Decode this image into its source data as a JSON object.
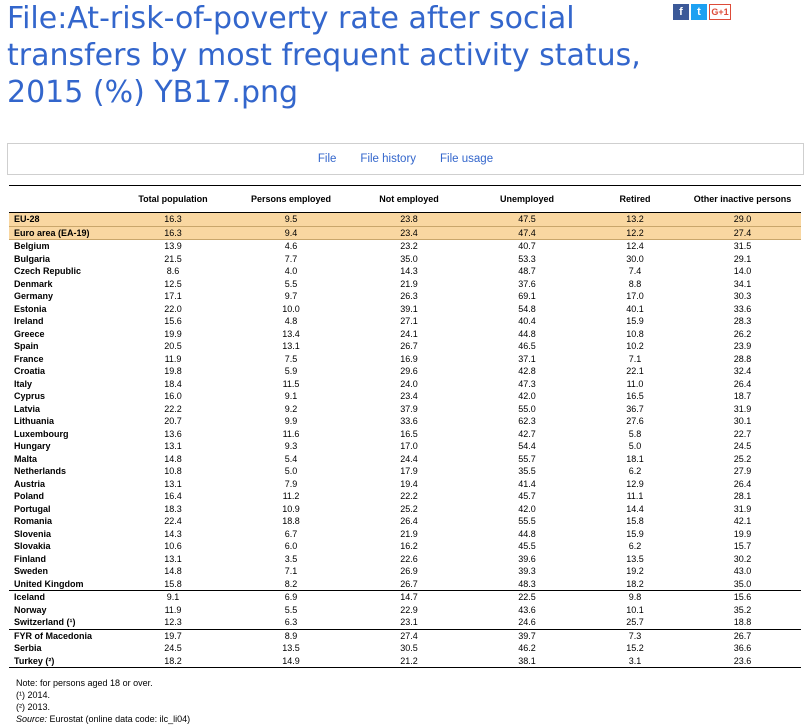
{
  "page": {
    "title": "File:At-risk-of-poverty rate after social transfers by most frequent activity status, 2015 (%) YB17.png"
  },
  "social": {
    "facebook": "f",
    "twitter": "t",
    "googleplus": "G+1"
  },
  "tabs": [
    {
      "label": "File"
    },
    {
      "label": "File history"
    },
    {
      "label": "File usage"
    }
  ],
  "table": {
    "headers": [
      "",
      "Total population",
      "Persons employed",
      "Not employed",
      "Unemployed",
      "Retired",
      "Other inactive persons"
    ],
    "rows": [
      {
        "name": "EU-28",
        "v": [
          "16.3",
          "9.5",
          "23.8",
          "47.5",
          "13.2",
          "29.0"
        ],
        "agg": true
      },
      {
        "name": "Euro area (EA-19)",
        "v": [
          "16.3",
          "9.4",
          "23.4",
          "47.4",
          "12.2",
          "27.4"
        ],
        "agg": true
      },
      {
        "name": "Belgium",
        "v": [
          "13.9",
          "4.6",
          "23.2",
          "40.7",
          "12.4",
          "31.5"
        ]
      },
      {
        "name": "Bulgaria",
        "v": [
          "21.5",
          "7.7",
          "35.0",
          "53.3",
          "30.0",
          "29.1"
        ]
      },
      {
        "name": "Czech Republic",
        "v": [
          "8.6",
          "4.0",
          "14.3",
          "48.7",
          "7.4",
          "14.0"
        ]
      },
      {
        "name": "Denmark",
        "v": [
          "12.5",
          "5.5",
          "21.9",
          "37.6",
          "8.8",
          "34.1"
        ]
      },
      {
        "name": "Germany",
        "v": [
          "17.1",
          "9.7",
          "26.3",
          "69.1",
          "17.0",
          "30.3"
        ]
      },
      {
        "name": "Estonia",
        "v": [
          "22.0",
          "10.0",
          "39.1",
          "54.8",
          "40.1",
          "33.6"
        ]
      },
      {
        "name": "Ireland",
        "v": [
          "15.6",
          "4.8",
          "27.1",
          "40.4",
          "15.9",
          "28.3"
        ]
      },
      {
        "name": "Greece",
        "v": [
          "19.9",
          "13.4",
          "24.1",
          "44.8",
          "10.8",
          "26.2"
        ]
      },
      {
        "name": "Spain",
        "v": [
          "20.5",
          "13.1",
          "26.7",
          "46.5",
          "10.2",
          "23.9"
        ]
      },
      {
        "name": "France",
        "v": [
          "11.9",
          "7.5",
          "16.9",
          "37.1",
          "7.1",
          "28.8"
        ]
      },
      {
        "name": "Croatia",
        "v": [
          "19.8",
          "5.9",
          "29.6",
          "42.8",
          "22.1",
          "32.4"
        ]
      },
      {
        "name": "Italy",
        "v": [
          "18.4",
          "11.5",
          "24.0",
          "47.3",
          "11.0",
          "26.4"
        ]
      },
      {
        "name": "Cyprus",
        "v": [
          "16.0",
          "9.1",
          "23.4",
          "42.0",
          "16.5",
          "18.7"
        ]
      },
      {
        "name": "Latvia",
        "v": [
          "22.2",
          "9.2",
          "37.9",
          "55.0",
          "36.7",
          "31.9"
        ]
      },
      {
        "name": "Lithuania",
        "v": [
          "20.7",
          "9.9",
          "33.6",
          "62.3",
          "27.6",
          "30.1"
        ]
      },
      {
        "name": "Luxembourg",
        "v": [
          "13.6",
          "11.6",
          "16.5",
          "42.7",
          "5.8",
          "22.7"
        ]
      },
      {
        "name": "Hungary",
        "v": [
          "13.1",
          "9.3",
          "17.0",
          "54.4",
          "5.0",
          "24.5"
        ]
      },
      {
        "name": "Malta",
        "v": [
          "14.8",
          "5.4",
          "24.4",
          "55.7",
          "18.1",
          "25.2"
        ]
      },
      {
        "name": "Netherlands",
        "v": [
          "10.8",
          "5.0",
          "17.9",
          "35.5",
          "6.2",
          "27.9"
        ]
      },
      {
        "name": "Austria",
        "v": [
          "13.1",
          "7.9",
          "19.4",
          "41.4",
          "12.9",
          "26.4"
        ]
      },
      {
        "name": "Poland",
        "v": [
          "16.4",
          "11.2",
          "22.2",
          "45.7",
          "11.1",
          "28.1"
        ]
      },
      {
        "name": "Portugal",
        "v": [
          "18.3",
          "10.9",
          "25.2",
          "42.0",
          "14.4",
          "31.9"
        ]
      },
      {
        "name": "Romania",
        "v": [
          "22.4",
          "18.8",
          "26.4",
          "55.5",
          "15.8",
          "42.1"
        ]
      },
      {
        "name": "Slovenia",
        "v": [
          "14.3",
          "6.7",
          "21.9",
          "44.8",
          "15.9",
          "19.9"
        ]
      },
      {
        "name": "Slovakia",
        "v": [
          "10.6",
          "6.0",
          "16.2",
          "45.5",
          "6.2",
          "15.7"
        ]
      },
      {
        "name": "Finland",
        "v": [
          "13.1",
          "3.5",
          "22.6",
          "39.6",
          "13.5",
          "30.2"
        ]
      },
      {
        "name": "Sweden",
        "v": [
          "14.8",
          "7.1",
          "26.9",
          "39.3",
          "19.2",
          "43.0"
        ]
      },
      {
        "name": "United Kingdom",
        "v": [
          "15.8",
          "8.2",
          "26.7",
          "48.3",
          "18.2",
          "35.0"
        ]
      },
      {
        "name": "Iceland",
        "v": [
          "9.1",
          "6.9",
          "14.7",
          "22.5",
          "9.8",
          "15.6"
        ],
        "sep": true
      },
      {
        "name": "Norway",
        "v": [
          "11.9",
          "5.5",
          "22.9",
          "43.6",
          "10.1",
          "35.2"
        ]
      },
      {
        "name": "Switzerland (¹)",
        "v": [
          "12.3",
          "6.3",
          "23.1",
          "24.6",
          "25.7",
          "18.8"
        ]
      },
      {
        "name": "FYR of Macedonia",
        "v": [
          "19.7",
          "8.9",
          "27.4",
          "39.7",
          "7.3",
          "26.7"
        ],
        "sep": true
      },
      {
        "name": "Serbia",
        "v": [
          "24.5",
          "13.5",
          "30.5",
          "46.2",
          "15.2",
          "36.6"
        ]
      },
      {
        "name": "Turkey (²)",
        "v": [
          "18.2",
          "14.9",
          "21.2",
          "38.1",
          "3.1",
          "23.6"
        ],
        "last": true
      }
    ]
  },
  "notes": {
    "line1": "Note: for persons aged 18 or over.",
    "line2": "(¹) 2014.",
    "line3": "(²) 2013.",
    "source_label": "Source:",
    "source_text": " Eurostat (online data code: ilc_li04)"
  }
}
